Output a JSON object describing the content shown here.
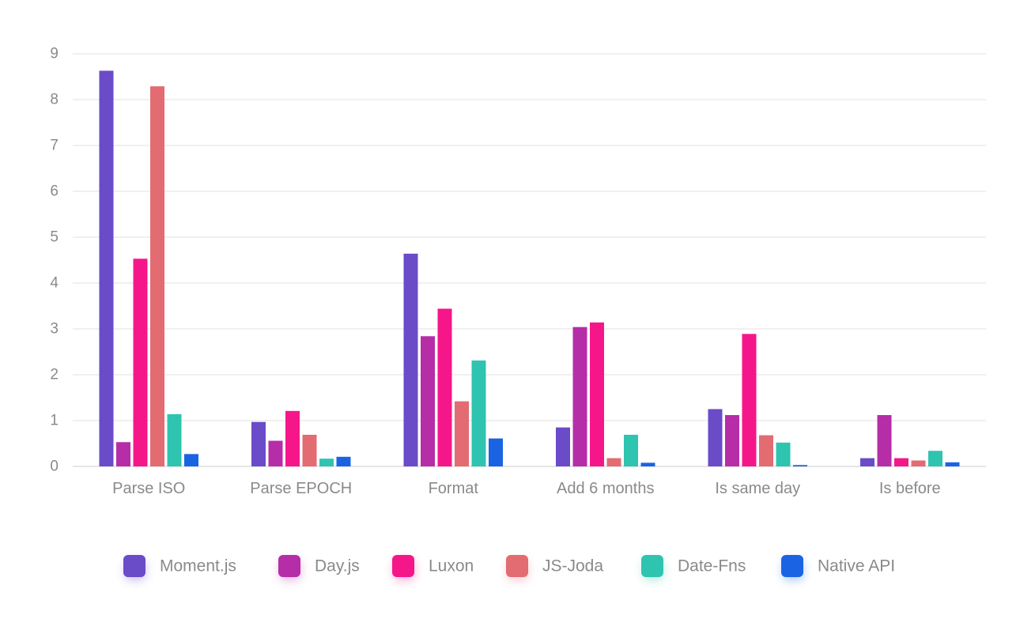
{
  "chart_data": {
    "type": "bar",
    "categories": [
      "Parse ISO",
      "Parse EPOCH",
      "Format",
      "Add 6 months",
      "Is same day",
      "Is before"
    ],
    "series": [
      {
        "name": "Moment.js",
        "color": "#6a4bc8",
        "values": [
          8.63,
          0.97,
          4.64,
          0.85,
          1.25,
          0.18
        ]
      },
      {
        "name": "Day.js",
        "color": "#b62da8",
        "values": [
          0.53,
          0.56,
          2.84,
          3.04,
          1.12,
          1.12
        ]
      },
      {
        "name": "Luxon",
        "color": "#f5178a",
        "values": [
          4.53,
          1.21,
          3.44,
          3.14,
          2.89,
          0.18
        ]
      },
      {
        "name": "JS-Joda",
        "color": "#e36b72",
        "values": [
          8.29,
          0.69,
          1.42,
          0.18,
          0.68,
          0.13
        ]
      },
      {
        "name": "Date-Fns",
        "color": "#2ec4b0",
        "values": [
          1.14,
          0.17,
          2.31,
          0.69,
          0.52,
          0.34
        ]
      },
      {
        "name": "Native API",
        "color": "#1a64e4",
        "values": [
          0.27,
          0.21,
          0.61,
          0.08,
          0.03,
          0.09
        ]
      }
    ],
    "y_ticks": [
      "0",
      "1",
      "2",
      "3",
      "4",
      "5",
      "6",
      "7",
      "8",
      "9"
    ],
    "ylim": [
      0,
      9
    ],
    "grid": true,
    "legend_position": "bottom",
    "title": "",
    "xlabel": "",
    "ylabel": ""
  }
}
